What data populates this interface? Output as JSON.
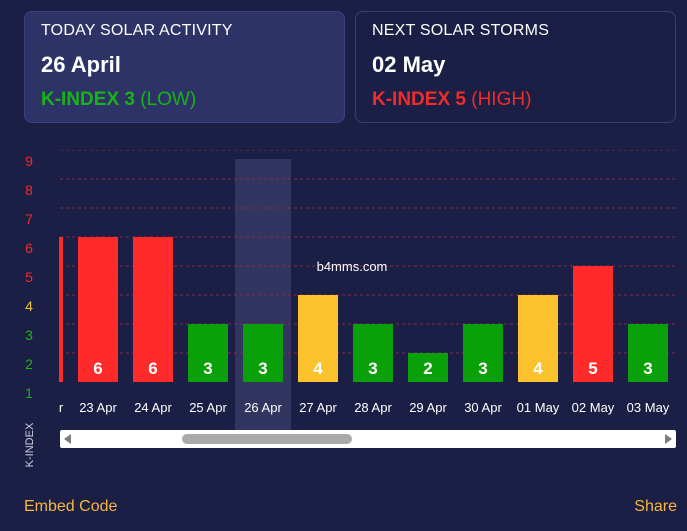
{
  "today_card": {
    "heading": "TODAY SOLAR ACTIVITY",
    "date": "26 April",
    "kindex_label": "K-INDEX 3",
    "kindex_level": "(LOW)",
    "color": "#17b317"
  },
  "next_card": {
    "heading": "NEXT SOLAR STORMS",
    "date": "02 May",
    "kindex_label": "K-INDEX 5",
    "kindex_level": "(HIGH)",
    "color": "#ee2c2c"
  },
  "watermark": "b4mms.com",
  "footer": {
    "embed_label": "Embed Code",
    "share_label": "Share"
  },
  "chart_data": {
    "type": "bar",
    "ylabel": "K-INDEX",
    "ylim": [
      1,
      9
    ],
    "yticks": [
      {
        "value": 1,
        "label": "1",
        "color": "#17b317"
      },
      {
        "value": 2,
        "label": "2",
        "color": "#17b317"
      },
      {
        "value": 3,
        "label": "3",
        "color": "#17b317"
      },
      {
        "value": 4,
        "label": "4",
        "color": "#f6c23a"
      },
      {
        "value": 5,
        "label": "5",
        "color": "#ee2c2c"
      },
      {
        "value": 6,
        "label": "6",
        "color": "#ee2c2c"
      },
      {
        "value": 7,
        "label": "7",
        "color": "#ee2c2c"
      },
      {
        "value": 8,
        "label": "8",
        "color": "#ee2c2c"
      },
      {
        "value": 9,
        "label": "9",
        "color": "#ee2c2c"
      }
    ],
    "partial_category": "r",
    "categories": [
      "23 Apr",
      "24 Apr",
      "25 Apr",
      "26 Apr",
      "27 Apr",
      "28 Apr",
      "29 Apr",
      "30 Apr",
      "01 May",
      "02 May",
      "03 May"
    ],
    "values": [
      6,
      6,
      3,
      3,
      4,
      3,
      2,
      3,
      4,
      5,
      3
    ],
    "highlighted_category": "26 Apr",
    "colors": {
      "low": "#0aa00a",
      "moderate": "#fcc22d",
      "high": "#ff2a2a",
      "grid": "#7a2f4d"
    },
    "grid": true
  }
}
